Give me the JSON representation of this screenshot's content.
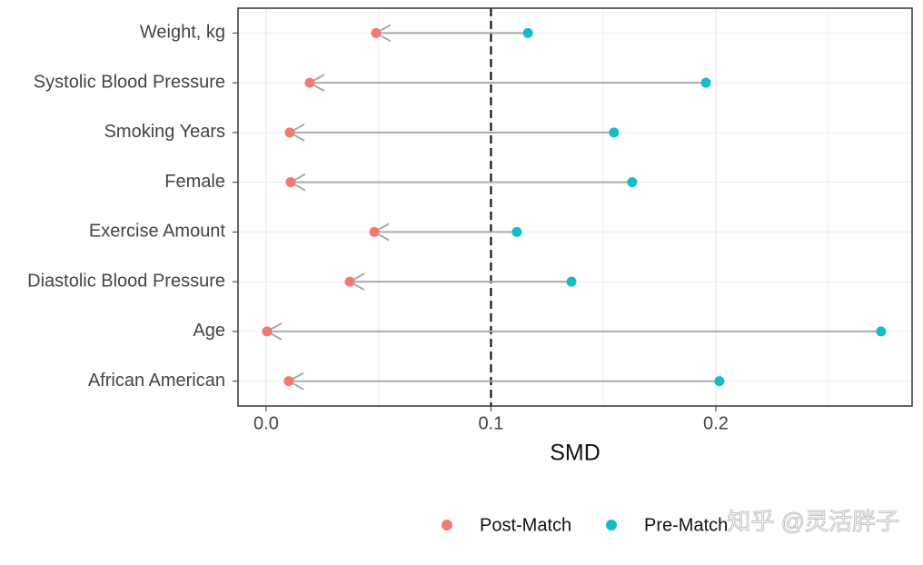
{
  "chart_data": {
    "type": "arrow-dumbbell",
    "categories": [
      "Weight, kg",
      "Systolic Blood Pressure",
      "Smoking Years",
      "Female",
      "Exercise Amount",
      "Diastolic Blood Pressure",
      "Age",
      "African American"
    ],
    "series": [
      {
        "name": "Post-Match",
        "color": "#f07b72",
        "values": [
          0.0489,
          0.0194,
          0.0105,
          0.0109,
          0.0481,
          0.0372,
          0.0004,
          0.0101
        ]
      },
      {
        "name": "Pre-Match",
        "color": "#14bcc4",
        "values": [
          0.1164,
          0.1956,
          0.1547,
          0.1628,
          0.1115,
          0.1358,
          0.2735,
          0.2016
        ]
      }
    ],
    "xlabel": "SMD",
    "xlim": [
      -0.0125,
      0.2873
    ],
    "xticks": [
      {
        "value": 0,
        "label": "0.0"
      },
      0.1,
      0.2
    ],
    "minor_xticks": [
      0.05,
      0.15,
      0.25
    ],
    "reference_line": 0.1,
    "grid": true,
    "legend_position": "bottom",
    "watermark": "知乎 @灵活胖子"
  }
}
